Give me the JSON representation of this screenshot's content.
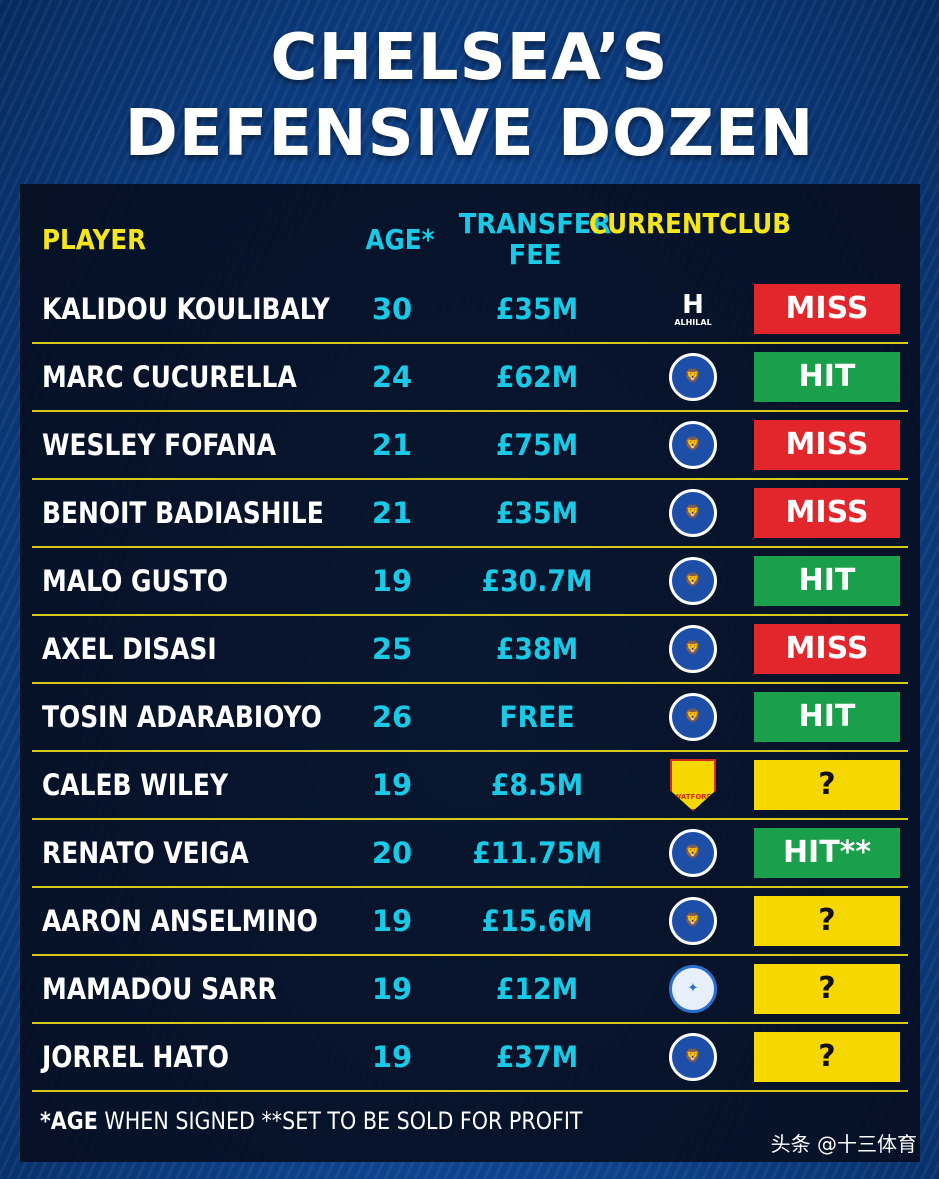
{
  "title": {
    "line1": "CHELSEA’S",
    "line2": "DEFENSIVE DOZEN"
  },
  "headers": {
    "player": "PLAYER",
    "age": "AGE*",
    "fee_line1": "TRANSFER",
    "fee_line2": "FEE",
    "club_line1": "CURRENT",
    "club_line2": "CLUB"
  },
  "colors": {
    "miss": "#e3262b",
    "hit": "#1aa04a",
    "unknown": "#f6d800",
    "header_yellow": "#f4e61a",
    "value_cyan": "#19c9e6"
  },
  "rows": [
    {
      "name": "KALIDOU KOULIBALY",
      "age": "30",
      "fee": "£35M",
      "club_icon": "al-hilal-crest-icon",
      "club_label": "ALHILAL",
      "verdict": "MISS"
    },
    {
      "name": "MARC CUCURELLA",
      "age": "24",
      "fee": "£62M",
      "club_icon": "chelsea-crest-icon",
      "verdict": "HIT"
    },
    {
      "name": "WESLEY FOFANA",
      "age": "21",
      "fee": "£75M",
      "club_icon": "chelsea-crest-icon",
      "verdict": "MISS"
    },
    {
      "name": "BENOIT BADIASHILE",
      "age": "21",
      "fee": "£35M",
      "club_icon": "chelsea-crest-icon",
      "verdict": "MISS"
    },
    {
      "name": "MALO GUSTO",
      "age": "19",
      "fee": "£30.7M",
      "club_icon": "chelsea-crest-icon",
      "verdict": "HIT"
    },
    {
      "name": "AXEL DISASI",
      "age": "25",
      "fee": "£38M",
      "club_icon": "chelsea-crest-icon",
      "verdict": "MISS"
    },
    {
      "name": "TOSIN ADARABIOYO",
      "age": "26",
      "fee": "FREE",
      "club_icon": "chelsea-crest-icon",
      "verdict": "HIT"
    },
    {
      "name": "CALEB WILEY",
      "age": "19",
      "fee": "£8.5M",
      "club_icon": "watford-crest-icon",
      "club_label": "WATFORD",
      "verdict": "?"
    },
    {
      "name": "RENATO VEIGA",
      "age": "20",
      "fee": "£11.75M",
      "club_icon": "chelsea-crest-icon",
      "verdict": "HIT**"
    },
    {
      "name": "AARON ANSELMINO",
      "age": "19",
      "fee": "£15.6M",
      "club_icon": "chelsea-crest-icon",
      "verdict": "?"
    },
    {
      "name": "MAMADOU SARR",
      "age": "19",
      "fee": "£12M",
      "club_icon": "strasbourg-crest-icon",
      "verdict": "?"
    },
    {
      "name": "JORREL HATO",
      "age": "19",
      "fee": "£37M",
      "club_icon": "chelsea-crest-icon",
      "verdict": "?"
    }
  ],
  "footnote": {
    "age_mark": "*AGE",
    "age_rest": " WHEN SIGNED ",
    "sold_note": "**SET TO BE SOLD FOR PROFIT"
  },
  "watermark": "头条 @十三体育"
}
